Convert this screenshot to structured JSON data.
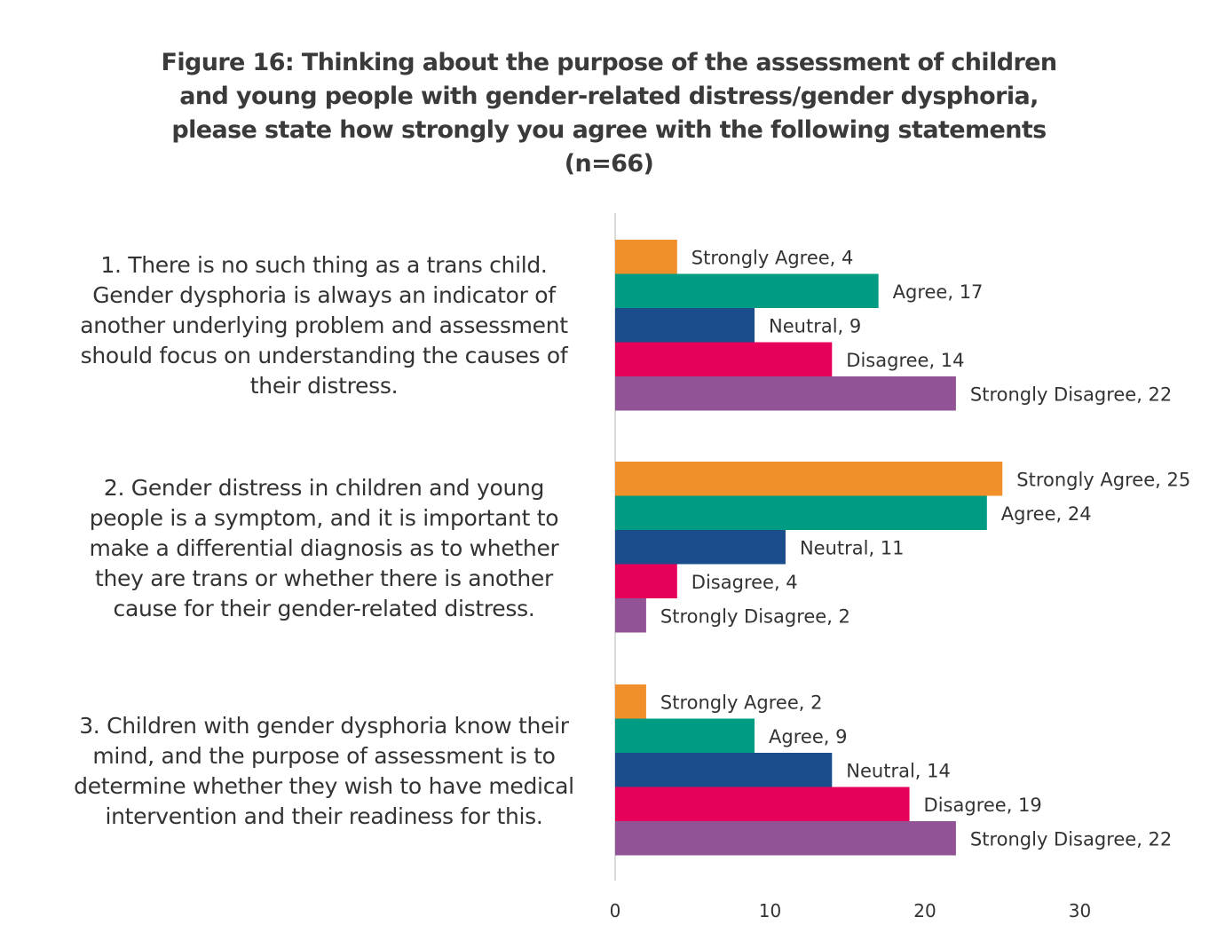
{
  "chart_data": {
    "type": "bar",
    "orientation": "horizontal",
    "title_lines": [
      "Figure 16: Thinking about the purpose of the assessment of children",
      "and young people with gender-related distress/gender dysphoria,",
      "please state how strongly you agree with the following statements",
      "(n=66)"
    ],
    "category_lines": [
      [
        "1. There is no such thing as a trans child.",
        "Gender dysphoria is always an indicator of",
        "another underlying problem and assessment",
        "should focus on understanding the causes of",
        "their distress."
      ],
      [
        "2. Gender distress in children and young",
        "people is a symptom, and it is important to",
        "make a differential diagnosis as to whether",
        "they are trans or whether there is another",
        "cause for their gender-related distress."
      ],
      [
        "3. Children with gender dysphoria know their",
        "mind, and the purpose of assessment is to",
        "determine whether they wish to have medical",
        "intervention and their readiness for this."
      ]
    ],
    "series": [
      {
        "name": "Strongly Agree",
        "color": "#F18F2A",
        "values": [
          4,
          25,
          2
        ]
      },
      {
        "name": "Agree",
        "color": "#009B83",
        "values": [
          17,
          24,
          9
        ]
      },
      {
        "name": "Neutral",
        "color": "#1B4C8C",
        "values": [
          9,
          11,
          14
        ]
      },
      {
        "name": "Disagree",
        "color": "#E6005A",
        "values": [
          14,
          4,
          19
        ]
      },
      {
        "name": "Strongly Disagree",
        "color": "#925396",
        "values": [
          22,
          2,
          22
        ]
      }
    ],
    "x_ticks": [
      0,
      10,
      20,
      30
    ],
    "xlim": [
      0,
      30
    ],
    "data_labels": true,
    "legend": "none",
    "grid": false
  }
}
